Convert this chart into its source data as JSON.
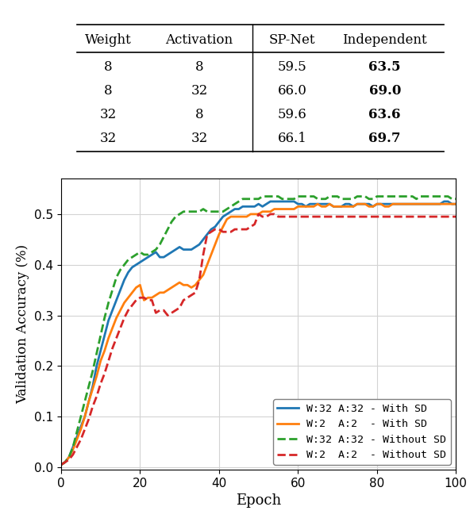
{
  "table": {
    "headers": [
      "Weight",
      "Activation",
      "SP-Net",
      "Independent"
    ],
    "rows": [
      [
        "8",
        "8",
        "59.5",
        "63.5"
      ],
      [
        "8",
        "32",
        "66.0",
        "69.0"
      ],
      [
        "32",
        "8",
        "59.6",
        "63.6"
      ],
      [
        "32",
        "32",
        "66.1",
        "69.7"
      ]
    ],
    "bold_cols": [
      3
    ]
  },
  "plot": {
    "xlabel": "Epoch",
    "ylabel": "Validation Accuracy (%)",
    "xlim": [
      0,
      100
    ],
    "ylim": [
      -0.005,
      0.57
    ],
    "xticks": [
      0,
      20,
      40,
      60,
      80,
      100
    ],
    "yticks": [
      0.0,
      0.1,
      0.2,
      0.3,
      0.4,
      0.5
    ],
    "grid": true,
    "legend": [
      {
        "label": "W:32 A:32 - With SD",
        "color": "#1f77b4",
        "linestyle": "solid",
        "linewidth": 2.0
      },
      {
        "label": "W:2  A:2  - With SD",
        "color": "#ff7f0e",
        "linestyle": "solid",
        "linewidth": 2.0
      },
      {
        "label": "W:32 A:32 - Without SD",
        "color": "#2ca02c",
        "linestyle": "dashed",
        "linewidth": 2.0
      },
      {
        "label": "W:2  A:2  - Without SD",
        "color": "#d62728",
        "linestyle": "dashed",
        "linewidth": 2.0
      }
    ],
    "series": {
      "w32a32_with_sd": {
        "color": "#1f77b4",
        "linestyle": "solid",
        "linewidth": 2.0,
        "x": [
          0,
          1,
          2,
          3,
          4,
          5,
          6,
          7,
          8,
          9,
          10,
          11,
          12,
          13,
          14,
          15,
          16,
          17,
          18,
          19,
          20,
          21,
          22,
          23,
          24,
          25,
          26,
          27,
          28,
          29,
          30,
          31,
          32,
          33,
          34,
          35,
          36,
          37,
          38,
          39,
          40,
          41,
          42,
          43,
          44,
          45,
          46,
          47,
          48,
          49,
          50,
          51,
          52,
          53,
          54,
          55,
          56,
          57,
          58,
          59,
          60,
          61,
          62,
          63,
          64,
          65,
          66,
          67,
          68,
          69,
          70,
          71,
          72,
          73,
          74,
          75,
          76,
          77,
          78,
          79,
          80,
          81,
          82,
          83,
          84,
          85,
          86,
          87,
          88,
          89,
          90,
          91,
          92,
          93,
          94,
          95,
          96,
          97,
          98,
          99,
          100
        ],
        "y": [
          0.005,
          0.01,
          0.02,
          0.04,
          0.06,
          0.08,
          0.1,
          0.13,
          0.16,
          0.2,
          0.23,
          0.26,
          0.29,
          0.31,
          0.33,
          0.35,
          0.37,
          0.385,
          0.395,
          0.4,
          0.405,
          0.41,
          0.415,
          0.42,
          0.425,
          0.415,
          0.415,
          0.42,
          0.425,
          0.43,
          0.435,
          0.43,
          0.43,
          0.43,
          0.435,
          0.44,
          0.45,
          0.46,
          0.47,
          0.475,
          0.485,
          0.495,
          0.5,
          0.505,
          0.51,
          0.51,
          0.515,
          0.515,
          0.515,
          0.515,
          0.52,
          0.515,
          0.52,
          0.525,
          0.525,
          0.525,
          0.525,
          0.525,
          0.525,
          0.525,
          0.52,
          0.52,
          0.515,
          0.52,
          0.52,
          0.52,
          0.52,
          0.52,
          0.52,
          0.515,
          0.515,
          0.515,
          0.52,
          0.52,
          0.515,
          0.52,
          0.52,
          0.52,
          0.52,
          0.515,
          0.52,
          0.52,
          0.52,
          0.52,
          0.52,
          0.52,
          0.52,
          0.52,
          0.52,
          0.52,
          0.52,
          0.52,
          0.52,
          0.52,
          0.52,
          0.52,
          0.52,
          0.525,
          0.525,
          0.52,
          0.52
        ]
      },
      "w2a2_with_sd": {
        "color": "#ff7f0e",
        "linestyle": "solid",
        "linewidth": 2.0,
        "x": [
          0,
          1,
          2,
          3,
          4,
          5,
          6,
          7,
          8,
          9,
          10,
          11,
          12,
          13,
          14,
          15,
          16,
          17,
          18,
          19,
          20,
          21,
          22,
          23,
          24,
          25,
          26,
          27,
          28,
          29,
          30,
          31,
          32,
          33,
          34,
          35,
          36,
          37,
          38,
          39,
          40,
          41,
          42,
          43,
          44,
          45,
          46,
          47,
          48,
          49,
          50,
          51,
          52,
          53,
          54,
          55,
          56,
          57,
          58,
          59,
          60,
          61,
          62,
          63,
          64,
          65,
          66,
          67,
          68,
          69,
          70,
          71,
          72,
          73,
          74,
          75,
          76,
          77,
          78,
          79,
          80,
          81,
          82,
          83,
          84,
          85,
          86,
          87,
          88,
          89,
          90,
          91,
          92,
          93,
          94,
          95,
          96,
          97,
          98,
          99,
          100
        ],
        "y": [
          0.005,
          0.01,
          0.02,
          0.035,
          0.055,
          0.075,
          0.1,
          0.13,
          0.155,
          0.18,
          0.21,
          0.23,
          0.255,
          0.275,
          0.295,
          0.31,
          0.325,
          0.335,
          0.345,
          0.355,
          0.36,
          0.33,
          0.335,
          0.335,
          0.34,
          0.345,
          0.345,
          0.35,
          0.355,
          0.36,
          0.365,
          0.36,
          0.36,
          0.355,
          0.36,
          0.37,
          0.38,
          0.4,
          0.42,
          0.44,
          0.46,
          0.475,
          0.49,
          0.495,
          0.495,
          0.495,
          0.495,
          0.495,
          0.5,
          0.5,
          0.5,
          0.505,
          0.505,
          0.505,
          0.51,
          0.51,
          0.51,
          0.51,
          0.51,
          0.51,
          0.515,
          0.515,
          0.515,
          0.515,
          0.515,
          0.52,
          0.515,
          0.515,
          0.52,
          0.515,
          0.515,
          0.515,
          0.515,
          0.515,
          0.515,
          0.52,
          0.52,
          0.52,
          0.515,
          0.515,
          0.52,
          0.52,
          0.515,
          0.515,
          0.52,
          0.52,
          0.52,
          0.52,
          0.52,
          0.52,
          0.52,
          0.52,
          0.52,
          0.52,
          0.52,
          0.52,
          0.52,
          0.52,
          0.52,
          0.52,
          0.52
        ]
      },
      "w32a32_without_sd": {
        "color": "#2ca02c",
        "linestyle": "dashed",
        "linewidth": 2.0,
        "x": [
          0,
          1,
          2,
          3,
          4,
          5,
          6,
          7,
          8,
          9,
          10,
          11,
          12,
          13,
          14,
          15,
          16,
          17,
          18,
          19,
          20,
          21,
          22,
          23,
          24,
          25,
          26,
          27,
          28,
          29,
          30,
          31,
          32,
          33,
          34,
          35,
          36,
          37,
          38,
          39,
          40,
          41,
          42,
          43,
          44,
          45,
          46,
          47,
          48,
          49,
          50,
          51,
          52,
          53,
          54,
          55,
          56,
          57,
          58,
          59,
          60,
          61,
          62,
          63,
          64,
          65,
          66,
          67,
          68,
          69,
          70,
          71,
          72,
          73,
          74,
          75,
          76,
          77,
          78,
          79,
          80,
          81,
          82,
          83,
          84,
          85,
          86,
          87,
          88,
          89,
          90,
          91,
          92,
          93,
          94,
          95,
          96,
          97,
          98,
          99,
          100
        ],
        "y": [
          0.005,
          0.01,
          0.02,
          0.04,
          0.07,
          0.1,
          0.13,
          0.16,
          0.19,
          0.225,
          0.26,
          0.295,
          0.325,
          0.35,
          0.375,
          0.39,
          0.4,
          0.41,
          0.415,
          0.42,
          0.425,
          0.42,
          0.42,
          0.425,
          0.43,
          0.44,
          0.455,
          0.47,
          0.485,
          0.495,
          0.5,
          0.505,
          0.505,
          0.505,
          0.505,
          0.505,
          0.51,
          0.505,
          0.505,
          0.505,
          0.505,
          0.505,
          0.51,
          0.515,
          0.52,
          0.525,
          0.53,
          0.53,
          0.53,
          0.53,
          0.53,
          0.535,
          0.535,
          0.535,
          0.535,
          0.535,
          0.53,
          0.53,
          0.53,
          0.53,
          0.535,
          0.535,
          0.535,
          0.535,
          0.535,
          0.53,
          0.53,
          0.53,
          0.535,
          0.535,
          0.535,
          0.53,
          0.53,
          0.53,
          0.53,
          0.535,
          0.535,
          0.535,
          0.53,
          0.53,
          0.535,
          0.535,
          0.535,
          0.535,
          0.535,
          0.535,
          0.535,
          0.535,
          0.535,
          0.535,
          0.53,
          0.535,
          0.535,
          0.535,
          0.535,
          0.535,
          0.535,
          0.535,
          0.535,
          0.53,
          0.53
        ]
      },
      "w2a2_without_sd": {
        "color": "#d62728",
        "linestyle": "dashed",
        "linewidth": 2.0,
        "x": [
          0,
          1,
          2,
          3,
          4,
          5,
          6,
          7,
          8,
          9,
          10,
          11,
          12,
          13,
          14,
          15,
          16,
          17,
          18,
          19,
          20,
          21,
          22,
          23,
          24,
          25,
          26,
          27,
          28,
          29,
          30,
          31,
          32,
          33,
          34,
          35,
          36,
          37,
          38,
          39,
          40,
          41,
          42,
          43,
          44,
          45,
          46,
          47,
          48,
          49,
          50,
          51,
          52,
          53,
          54,
          55,
          56,
          57,
          58,
          59,
          60,
          61,
          62,
          63,
          64,
          65,
          66,
          67,
          68,
          69,
          70,
          71,
          72,
          73,
          74,
          75,
          76,
          77,
          78,
          79,
          80,
          81,
          82,
          83,
          84,
          85,
          86,
          87,
          88,
          89,
          90,
          91,
          92,
          93,
          94,
          95,
          96,
          97,
          98,
          99,
          100
        ],
        "y": [
          0.005,
          0.01,
          0.015,
          0.025,
          0.04,
          0.055,
          0.075,
          0.095,
          0.12,
          0.14,
          0.165,
          0.185,
          0.21,
          0.235,
          0.255,
          0.275,
          0.295,
          0.31,
          0.32,
          0.33,
          0.335,
          0.335,
          0.33,
          0.33,
          0.305,
          0.31,
          0.31,
          0.3,
          0.305,
          0.31,
          0.315,
          0.33,
          0.335,
          0.34,
          0.345,
          0.37,
          0.42,
          0.46,
          0.465,
          0.47,
          0.47,
          0.465,
          0.465,
          0.465,
          0.47,
          0.47,
          0.47,
          0.47,
          0.475,
          0.48,
          0.5,
          0.495,
          0.495,
          0.5,
          0.5,
          0.495,
          0.495,
          0.495,
          0.495,
          0.495,
          0.495,
          0.495,
          0.495,
          0.495,
          0.495,
          0.495,
          0.495,
          0.495,
          0.495,
          0.495,
          0.495,
          0.495,
          0.495,
          0.495,
          0.495,
          0.495,
          0.495,
          0.495,
          0.495,
          0.495,
          0.495,
          0.495,
          0.495,
          0.495,
          0.495,
          0.495,
          0.495,
          0.495,
          0.495,
          0.495,
          0.495,
          0.495,
          0.495,
          0.495,
          0.495,
          0.495,
          0.495,
          0.495,
          0.495,
          0.495,
          0.495
        ]
      }
    }
  }
}
